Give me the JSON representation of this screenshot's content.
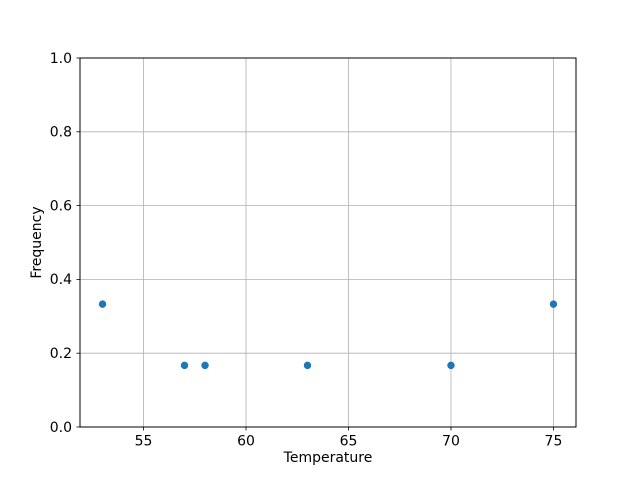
{
  "chart_data": {
    "type": "scatter",
    "title": "",
    "xlabel": "Temperature",
    "ylabel": "Frequency",
    "xlim": [
      51.9,
      76.1
    ],
    "ylim": [
      0.0,
      1.0
    ],
    "xticks": {
      "values": [
        55,
        60,
        65,
        70,
        75
      ],
      "labels": [
        "55",
        "60",
        "65",
        "70",
        "75"
      ]
    },
    "yticks": {
      "values": [
        0.0,
        0.2,
        0.4,
        0.6,
        0.8,
        1.0
      ],
      "labels": [
        "0.0",
        "0.2",
        "0.4",
        "0.6",
        "0.8",
        "1.0"
      ]
    },
    "grid": true,
    "legend": null,
    "series": [
      {
        "name": "frequency-points",
        "marker": "circle",
        "marker_color": "#1f77b4",
        "points": [
          {
            "x": 53,
            "y": 0.333
          },
          {
            "x": 57,
            "y": 0.167
          },
          {
            "x": 58,
            "y": 0.167
          },
          {
            "x": 63,
            "y": 0.167
          },
          {
            "x": 70,
            "y": 0.167
          },
          {
            "x": 75,
            "y": 0.333
          }
        ]
      }
    ]
  },
  "colors": {
    "background": "#ffffff",
    "grid": "#b0b0b0",
    "spine": "#000000",
    "tick": "#000000",
    "text": "#000000",
    "marker": "#1f77b4"
  }
}
